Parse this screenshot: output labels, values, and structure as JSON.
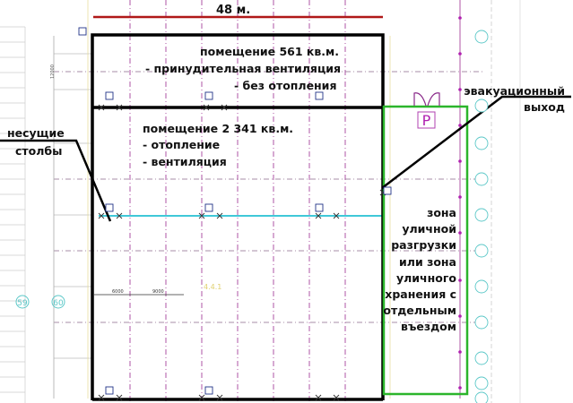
{
  "dimension": {
    "label": "48 м.",
    "color": "#b01818"
  },
  "room_upper": {
    "title": "помещение 561 кв.м.",
    "lines": [
      "- принудительная вентиляция",
      "- без отопления"
    ]
  },
  "room_main": {
    "title": "помещение 2 341 кв.м.",
    "lines": [
      "- отопление",
      "- вентиляция"
    ]
  },
  "callouts": {
    "columns": [
      "несущие",
      "столбы"
    ],
    "exit": [
      "эвакуационный",
      "выход"
    ],
    "zone": [
      "зона",
      "уличной",
      "разгрузки",
      "или зона",
      "уличного",
      "хранения с",
      "отдельным",
      "въездом"
    ]
  },
  "parking_sign": "P",
  "drawing_marks": {
    "axis_left": [
      "59",
      "60"
    ],
    "room_code": "4.4.1",
    "dims": [
      "6000",
      "9000"
    ],
    "span": "12000"
  },
  "colors": {
    "wall": "#000000",
    "zone": "#2bb52b",
    "grid": "#9b2a8f",
    "axis": "#5cc8c8",
    "service": "#40c8d8"
  }
}
